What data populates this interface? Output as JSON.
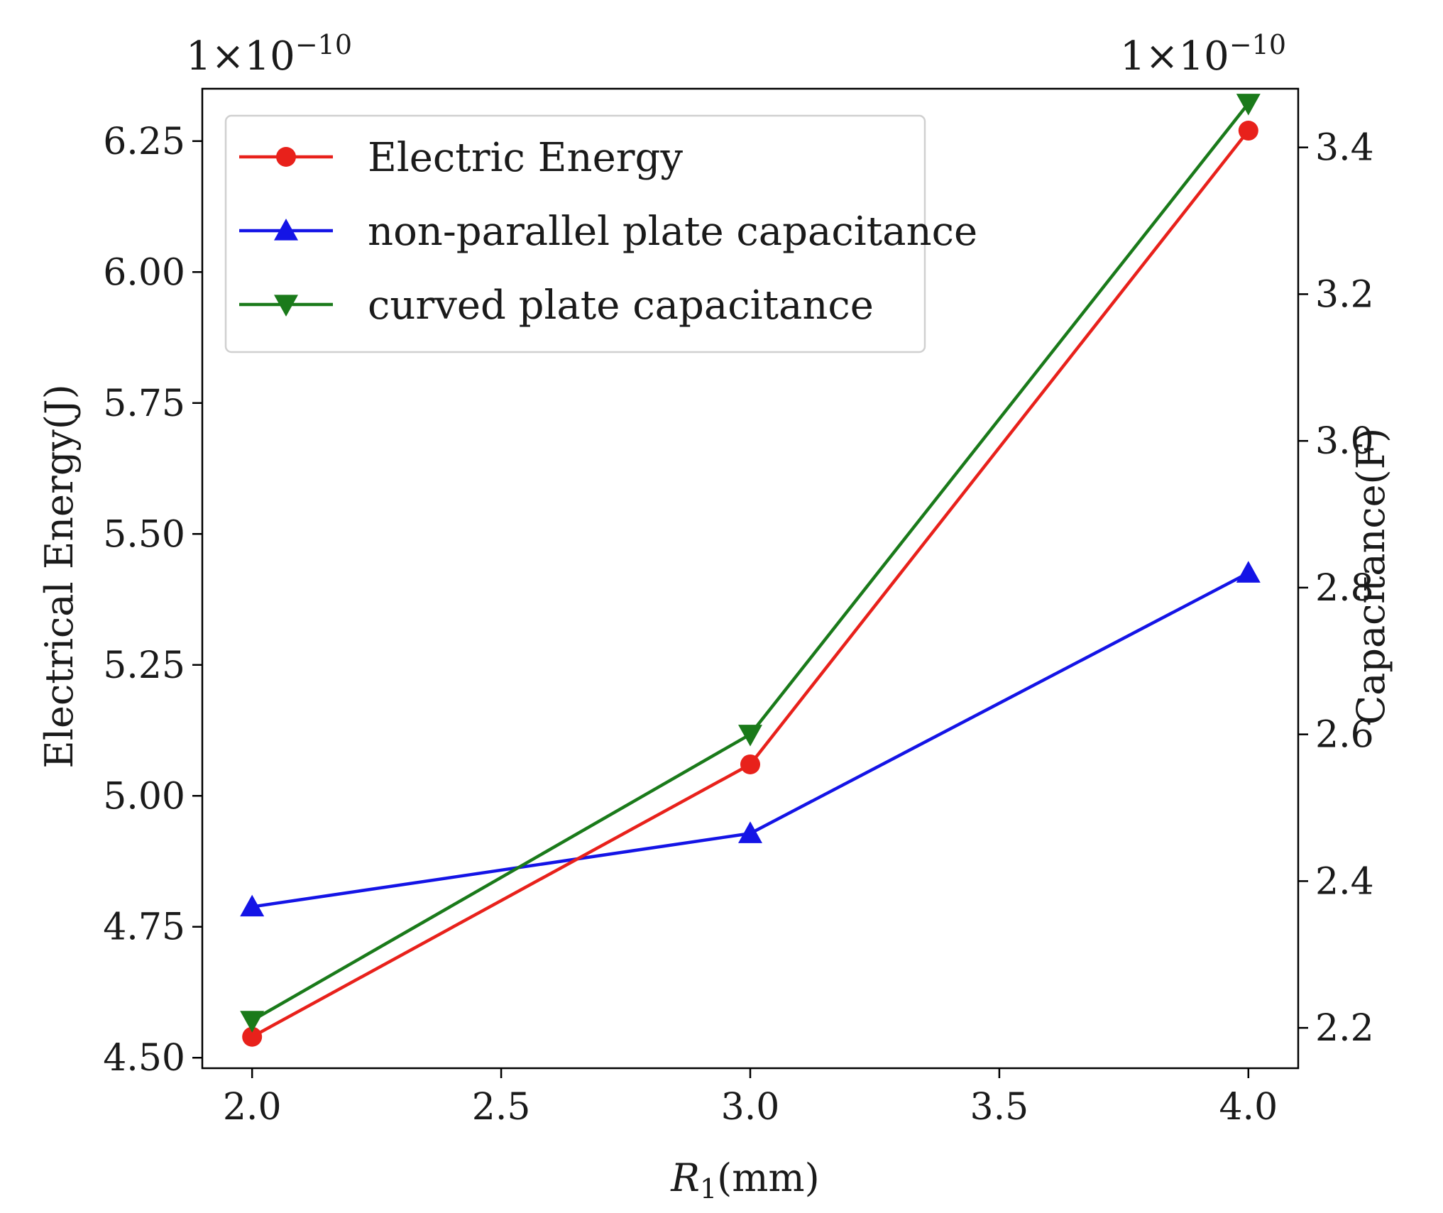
{
  "chart_data": {
    "type": "line",
    "x": [
      2.0,
      3.0,
      4.0
    ],
    "xlabel_main": "R",
    "xlabel_sub": "1",
    "xlabel_unit": "(mm)",
    "ylabel_left": "Electrical Energy(J)",
    "ylabel_right": "Capacitance(F)",
    "multiplier_base": "1×10",
    "multiplier_exponent": "−10",
    "xlim": [
      1.9,
      4.1
    ],
    "ylim_left": [
      4.48,
      6.35
    ],
    "ylim_right": [
      2.145,
      3.48
    ],
    "x_ticks": [
      2.0,
      2.5,
      3.0,
      3.5,
      4.0
    ],
    "x_tick_labels": [
      "2.0",
      "2.5",
      "3.0",
      "3.5",
      "4.0"
    ],
    "y_left_ticks": [
      4.5,
      4.75,
      5.0,
      5.25,
      5.5,
      5.75,
      6.0,
      6.25
    ],
    "y_left_tick_labels": [
      "4.50",
      "4.75",
      "5.00",
      "5.25",
      "5.50",
      "5.75",
      "6.00",
      "6.25"
    ],
    "y_right_ticks": [
      2.2,
      2.4,
      2.6,
      2.8,
      3.0,
      3.2,
      3.4
    ],
    "y_right_tick_labels": [
      "2.2",
      "2.4",
      "2.6",
      "2.8",
      "3.0",
      "3.2",
      "3.4"
    ],
    "series": [
      {
        "name": "Electric Energy",
        "axis": "left",
        "color": "#e8211b",
        "marker": "circle",
        "values": [
          4.54,
          5.06,
          6.27
        ]
      },
      {
        "name": "non-parallel plate capacitance",
        "axis": "right",
        "color": "#1414e6",
        "marker": "triangle-up",
        "values": [
          2.365,
          2.465,
          2.82
        ]
      },
      {
        "name": "curved plate capacitance",
        "axis": "right",
        "color": "#1a7a1a",
        "marker": "triangle-down",
        "values": [
          2.21,
          2.6,
          3.46
        ]
      }
    ],
    "legend_position": "top-left",
    "grid": false
  }
}
